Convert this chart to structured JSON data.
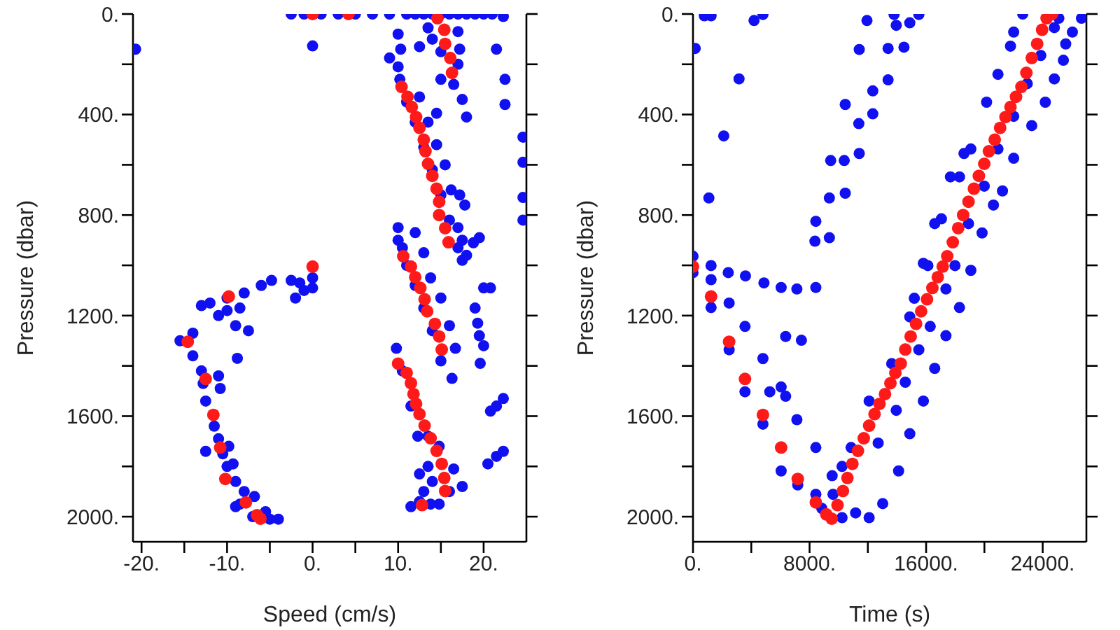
{
  "chart_data": [
    {
      "type": "scatter",
      "xlabel": "Speed (cm/s)",
      "ylabel": "Pressure (dbar)",
      "xlim": [
        -21,
        25
      ],
      "ylim": [
        2100,
        0
      ],
      "marker": "circle",
      "grid": false,
      "xticks": [
        {
          "value": -20,
          "label": "-20."
        },
        {
          "value": -15,
          "label": null
        },
        {
          "value": -10,
          "label": "-10."
        },
        {
          "value": -5,
          "label": null
        },
        {
          "value": 0,
          "label": "0."
        },
        {
          "value": 5,
          "label": null
        },
        {
          "value": 10,
          "label": "10."
        },
        {
          "value": 15,
          "label": null
        },
        {
          "value": 20,
          "label": "20."
        }
      ],
      "yticks": [
        {
          "value": 0,
          "label": "0."
        },
        {
          "value": 200,
          "label": null
        },
        {
          "value": 400,
          "label": "400."
        },
        {
          "value": 600,
          "label": null
        },
        {
          "value": 800,
          "label": "800."
        },
        {
          "value": 1000,
          "label": null
        },
        {
          "value": 1200,
          "label": "1200."
        },
        {
          "value": 1400,
          "label": null
        },
        {
          "value": 1600,
          "label": "1600."
        },
        {
          "value": 1800,
          "label": null
        },
        {
          "value": 2000,
          "label": "2000."
        }
      ],
      "series": [
        {
          "color": "#1010f0",
          "x": [
            -2.5,
            -1,
            1,
            3,
            5,
            7,
            9,
            11,
            12,
            13,
            14,
            15,
            16,
            17,
            18,
            19,
            20,
            21,
            22.3,
            -20.7,
            0,
            10,
            10.3,
            12.5,
            9,
            13.5,
            14,
            15,
            17,
            17.2,
            17,
            16.5,
            15,
            17.5,
            14.5,
            18,
            21.5,
            22.5,
            22.5,
            24.6,
            24.6,
            24.6,
            24.6,
            10,
            10.2,
            11,
            12,
            13,
            14,
            15,
            16,
            17,
            17.5,
            12.5,
            13.5,
            14.5,
            15.5,
            16.2,
            17.2,
            17.8,
            17,
            17.5,
            18.8,
            19.5,
            18,
            10,
            10,
            10.5,
            11,
            12,
            13,
            14,
            15,
            16.3,
            12,
            13,
            13.8,
            15,
            16,
            16.7,
            19,
            19.3,
            20,
            20.8,
            19.5,
            20,
            19.6,
            20.8,
            21.5,
            22.3,
            20.5,
            21.5,
            22.3,
            9.8,
            10.5,
            11.5,
            12.3,
            13.5,
            14,
            14.8,
            12.5,
            16,
            17.5,
            13.5,
            14.8,
            16.5,
            12.5,
            13,
            11.5,
            13.8,
            -2.5,
            -1.5,
            0,
            0,
            -1,
            -2,
            -4.8,
            -6,
            -8,
            -10,
            -12,
            -13,
            -11,
            -10,
            -8.5,
            -9,
            -7.5,
            -8.8,
            -14,
            -15.5,
            -14,
            -13,
            -12.8,
            -11,
            -10.8,
            -12.5,
            -11.5,
            -12.5,
            -11,
            -10.5,
            -10,
            -9,
            -8,
            -8.5,
            -9,
            -7,
            -5,
            -4,
            -5.5,
            -6.8,
            -9.3,
            -9.8
          ],
          "values": [
            0,
            0,
            0,
            0,
            0,
            0,
            0,
            0,
            0,
            0,
            0,
            0,
            0,
            0,
            0,
            0,
            0,
            0,
            10,
            140,
            127,
            80,
            140,
            130,
            175,
            55,
            100,
            150,
            70,
            140,
            200,
            280,
            260,
            340,
            395,
            410,
            140,
            260,
            360,
            490,
            590,
            730,
            820,
            210,
            260,
            350,
            430,
            530,
            620,
            720,
            820,
            930,
            980,
            330,
            430,
            520,
            600,
            700,
            720,
            760,
            850,
            900,
            910,
            890,
            960,
            850,
            900,
            930,
            1000,
            1080,
            1170,
            1260,
            1380,
            1450,
            870,
            950,
            1050,
            1130,
            1240,
            1330,
            1170,
            1230,
            1090,
            1090,
            1280,
            1320,
            1390,
            1580,
            1560,
            1530,
            1790,
            1760,
            1740,
            1330,
            1420,
            1560,
            1680,
            1800,
            1860,
            1950,
            1940,
            1900,
            1880,
            1680,
            1720,
            1810,
            1830,
            1900,
            1960,
            1950,
            1060,
            1070,
            1050,
            1090,
            1100,
            1130,
            1060,
            1080,
            1110,
            1130,
            1150,
            1160,
            1200,
            1180,
            1170,
            1240,
            1260,
            1370,
            1270,
            1300,
            1360,
            1420,
            1470,
            1440,
            1490,
            1540,
            1640,
            1740,
            1690,
            1750,
            1800,
            1860,
            1900,
            1950,
            1960,
            2000,
            2010,
            2010,
            1980,
            1920,
            1790,
            1720
          ]
        },
        {
          "color": "#ff1a1a",
          "x": [
            0,
            4.2,
            14.6,
            15.4,
            15.5,
            16.1,
            16.3,
            10.4,
            11.1,
            11.6,
            12.1,
            12.5,
            13,
            13.2,
            13.5,
            14,
            14.5,
            14.8,
            14.8,
            15.5,
            15.9,
            10.6,
            11.5,
            12,
            12.6,
            13.1,
            13.4,
            14.3,
            14.8,
            15.1,
            0,
            -9.8,
            -14.6,
            -12.5,
            -11.6,
            -10.8,
            -10.2,
            -7.8,
            -6.5,
            -6.1,
            10,
            11,
            11.5,
            11.8,
            12.1,
            12.5,
            13.1,
            13.8,
            14.5,
            15.1,
            15.4,
            15.5,
            12.8
          ],
          "values": [
            0,
            0,
            17,
            63,
            119,
            175,
            234,
            290,
            329,
            370,
            410,
            453,
            500,
            546,
            596,
            644,
            695,
            747,
            800,
            852,
            908,
            964,
            1005,
            1047,
            1090,
            1135,
            1183,
            1233,
            1283,
            1335,
            1005,
            1124,
            1304,
            1452,
            1595,
            1725,
            1850,
            1943,
            1994,
            2008,
            1391,
            1428,
            1469,
            1512,
            1551,
            1592,
            1638,
            1688,
            1738,
            1790,
            1846,
            1898,
            1954
          ]
        }
      ]
    },
    {
      "type": "scatter",
      "xlabel": "Time (s)",
      "ylabel": "Pressure (dbar)",
      "xlim": [
        0,
        27000
      ],
      "ylim": [
        2100,
        0
      ],
      "marker": "circle",
      "grid": false,
      "xticks": [
        {
          "value": 0,
          "label": "0."
        },
        {
          "value": 4000,
          "label": null
        },
        {
          "value": 8000,
          "label": "8000."
        },
        {
          "value": 12000,
          "label": null
        },
        {
          "value": 16000,
          "label": "16000."
        },
        {
          "value": 20000,
          "label": null
        },
        {
          "value": 24000,
          "label": "24000."
        }
      ],
      "yticks": [
        {
          "value": 0,
          "label": "0."
        },
        {
          "value": 200,
          "label": null
        },
        {
          "value": 400,
          "label": "400."
        },
        {
          "value": 600,
          "label": null
        },
        {
          "value": 800,
          "label": "800."
        },
        {
          "value": 1000,
          "label": null
        },
        {
          "value": 1200,
          "label": "1200."
        },
        {
          "value": 1400,
          "label": null
        },
        {
          "value": 1600,
          "label": "1600."
        },
        {
          "value": 1800,
          "label": null
        },
        {
          "value": 2000,
          "label": "2000."
        }
      ],
      "series": [
        {
          "color": "#1010f0",
          "x": [
            150,
            780,
            1240,
            4190,
            4800,
            3160,
            2110,
            1090,
            0,
            0,
            1240,
            2420,
            3600,
            4870,
            6050,
            7130,
            8430,
            6360,
            7440,
            8430,
            8370,
            9360,
            9360,
            9450,
            10380,
            10450,
            10450,
            11410,
            11380,
            11410,
            12340,
            12340,
            11940,
            13390,
            13390,
            14480,
            13950,
            14880,
            15500,
            13800,
            1240,
            1240,
            2480,
            2480,
            3570,
            3570,
            4800,
            4800,
            5270,
            6050,
            6050,
            6360,
            7130,
            7190,
            8430,
            8430,
            8840,
            9550,
            10850,
            12090,
            13640,
            14880,
            16120,
            17050,
            18290,
            19070,
            20150,
            20930,
            22010,
            22630,
            16590,
            15810,
            15190,
            17670,
            18600,
            21790,
            12090,
            13020,
            14110,
            14880,
            15810,
            16590,
            17360,
            18290,
            19070,
            19840,
            20620,
            21240,
            22010,
            23250,
            24180,
            24800,
            25420,
            25580,
            26040,
            26660,
            25110,
            11160,
            10230,
            12710,
            13950,
            14570,
            15500,
            16280,
            17360,
            17980,
            18910,
            19990,
            20930,
            22010,
            22940,
            23870,
            24800,
            10230,
            9610
          ],
          "values": [
            137,
            7,
            7,
            26,
            2,
            258,
            485,
            732,
            964,
            1029,
            1001,
            1029,
            1042,
            1070,
            1088,
            1094,
            1088,
            1283,
            1298,
            825,
            904,
            890,
            732,
            583,
            583,
            713,
            360,
            555,
            436,
            141,
            397,
            306,
            26,
            262,
            137,
            132,
            45,
            35,
            2,
            2,
            1057,
            1168,
            1150,
            1336,
            1243,
            1503,
            1371,
            1632,
            1503,
            1484,
            1818,
            1521,
            1614,
            1874,
            1725,
            1911,
            1967,
            1837,
            1725,
            1540,
            1391,
            1205,
            1001,
            815,
            648,
            537,
            351,
            240,
            72,
            0,
            834,
            992,
            1131,
            648,
            555,
            128,
            2004,
            1948,
            1818,
            1670,
            1540,
            1410,
            1280,
            1168,
            1020,
            871,
            760,
            704,
            574,
            444,
            351,
            258,
            184,
            119,
            72,
            17,
            17,
            1985,
            1800,
            1707,
            1577,
            1465,
            1336,
            1243,
            1094,
            1001,
            834,
            685,
            537,
            407,
            277,
            165,
            54,
            2004,
            1911
          ]
        },
        {
          "color": "#ff1a1a",
          "x": [
            0,
            1240,
            2480,
            3570,
            4800,
            6050,
            7190,
            8430,
            9150,
            9520,
            9920,
            10290,
            10600,
            10940,
            11320,
            11720,
            12090,
            12460,
            12800,
            13180,
            13550,
            13890,
            14260,
            14570,
            14940,
            15310,
            15660,
            16060,
            16430,
            16800,
            17140,
            17450,
            17830,
            18200,
            18540,
            18910,
            19280,
            19620,
            19990,
            20310,
            20710,
            21080,
            21450,
            21790,
            22170,
            22540,
            22880,
            23250,
            23620,
            23960,
            24270,
            24650
          ],
          "values": [
            1005,
            1124,
            1304,
            1452,
            1595,
            1725,
            1850,
            1943,
            1991,
            2008,
            1954,
            1898,
            1846,
            1790,
            1738,
            1688,
            1638,
            1592,
            1551,
            1512,
            1469,
            1428,
            1391,
            1335,
            1283,
            1233,
            1183,
            1135,
            1090,
            1047,
            1005,
            964,
            908,
            852,
            800,
            747,
            695,
            644,
            596,
            546,
            500,
            453,
            410,
            370,
            329,
            290,
            234,
            175,
            119,
            63,
            17,
            0
          ]
        }
      ]
    }
  ]
}
